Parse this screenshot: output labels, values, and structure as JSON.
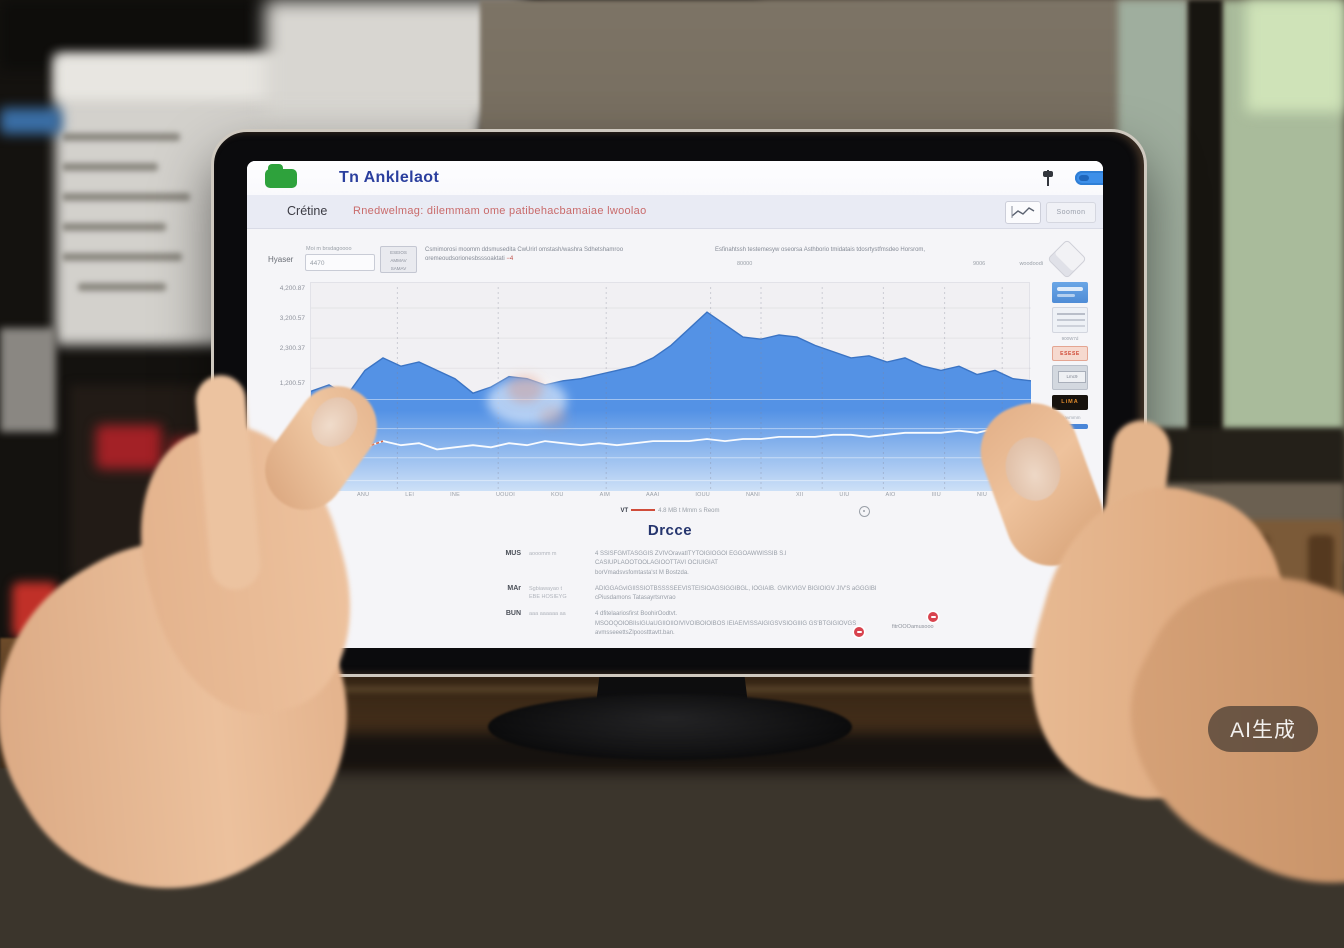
{
  "watermark": "AI生成",
  "tablet": {
    "titlebar": {
      "title": "Tn Anklelaot"
    },
    "menubar": {
      "label": "Crétine",
      "link": "Rnedwelmag: dilemmam ome patibehacbamaiae lwoolao",
      "secondary_button": "Soomon"
    },
    "toolbar": {
      "label": "Hyaser",
      "input_caption": "Moi m brsdagoooo",
      "input_value": "4470",
      "box_button_lines": "ESEIOS\nAMMAV\nSAMAV",
      "info_line1": "Csmimorosi moomm ddsmusedita CwUrirl omstash/washra Sdhetshamroo\noremeoudsorionesbsssoaktati",
      "info_mark": "−4",
      "info_line2": "Esfinahtssh testemesyw oseorsa Asthborio tmidatais tdosrtystfmsdeo Horsrom,",
      "sub_left": "80000",
      "sub_mid": "9006",
      "sub_right": "woodoodi"
    },
    "chart_data": {
      "type": "area",
      "title": "",
      "xlabel": "",
      "ylabel": "",
      "ylim": [
        0,
        100
      ],
      "grid": true,
      "legend_position": "none",
      "y_labels": [
        "4,200.87",
        "3,200.57",
        "2,300.37",
        "1,200.57"
      ],
      "x_labels": [
        "JAN",
        "ANU",
        "LEI",
        "INE",
        "UOUOI",
        "KOU",
        "AIM",
        "AAAI",
        "IOUU",
        "NANI",
        "XII",
        "UIU",
        "AIO",
        "IIIU",
        "NIU",
        "IIL"
      ],
      "annotation": "17",
      "series": [
        {
          "name": "main-area",
          "type": "area",
          "color": "#5492e5",
          "values": [
            48,
            51,
            46,
            58,
            64,
            60,
            62,
            58,
            54,
            47,
            50,
            55,
            54,
            51,
            53,
            54,
            56,
            58,
            60,
            64,
            70,
            78,
            86,
            80,
            74,
            73,
            75,
            74,
            70,
            67,
            64,
            65,
            62,
            64,
            60,
            58,
            60,
            56,
            58,
            54,
            53
          ]
        },
        {
          "name": "baseline",
          "type": "line",
          "color": "#ffffff",
          "start_color": "#d9684a",
          "values": [
            27,
            23,
            25,
            21,
            24,
            22,
            23,
            20,
            21,
            22,
            21,
            23,
            22,
            24,
            23,
            22,
            23,
            22,
            23,
            24,
            24,
            24,
            25,
            24,
            25,
            25,
            26,
            26,
            26,
            27,
            27,
            26,
            27,
            28,
            28,
            28,
            29,
            28,
            30,
            31,
            33
          ]
        }
      ]
    },
    "sidebar": {
      "tile2_caption": "900W7d",
      "tile3_label": "ESESE",
      "tile4_label": "Lmc9",
      "tile5_label": "LiMA",
      "caption2": "aaavmmm"
    },
    "meta_row": {
      "prefix": "VT",
      "text": "4.8 MB t Mmm s Reom"
    },
    "details": {
      "heading": "Drcce",
      "badge_note": "fitrOOOamusooo",
      "rows": [
        {
          "label": "MUS",
          "sub": "aooomm m",
          "body": "4 SSISFGMTASGGIS  ZVIVOravatITYTOIGIOGOI  EGGOAWWISSIB  S.I\nCASIUPLAOOTOOLAGIOOTTAVI OCIUIGIAT\nborVmadsvsfomtasta'st M Bostzda."
        },
        {
          "label": "MAr",
          "sub": "Sgbiawayao t\nEBE HOSIEYG",
          "body": "ADIGGAGvIGIISSIOTBSSSSEEVISTEISIOAGSIGGIBGL, IOGIAIB. GVIKVIGV BIGIOIGV JIV'S aGGGIBI\ncPiusdamons Tatasayrtsrrvrao"
        },
        {
          "label": "BUN",
          "sub": "aaa aaaaaa aa",
          "body": "4 dfitelaariosfirst BoohirOodtvt.\nMSOOQOIOBIIsIGUaUGIIOIIOIVIVOIBOIOIBOS IEIAEIVISSAIGIGSVSIOGIIIG GS'BTGIGIOVGS\navmsseeettsZlpoostttavtt.ban."
        }
      ]
    }
  }
}
